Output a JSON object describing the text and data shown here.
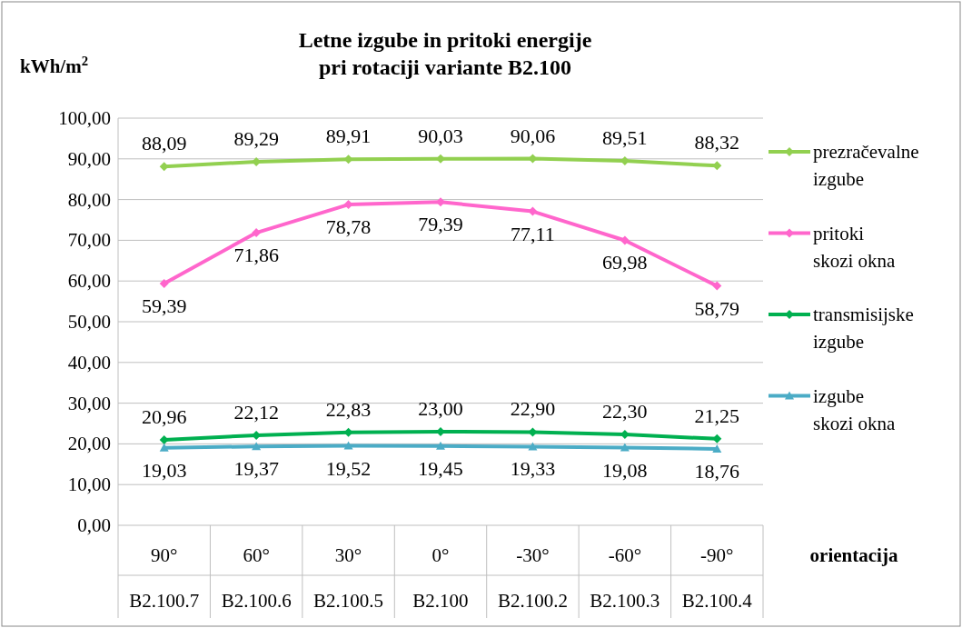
{
  "chart_data": {
    "type": "line",
    "title": "Letne izgube in pritoki energije\npri rotaciji variante B2.100",
    "ylabel": "kWh/m$^{2}$",
    "xlabel": "orientacija",
    "categories": [
      "90°\nB2.100.7",
      "60°\nB2.100.6",
      "30°\nB2.100.5",
      "0°\nB2.100",
      "-30°\nB2.100.2",
      "-60°\nB2.100.3",
      "-90°\nB2.100.4"
    ],
    "ylim": [
      0,
      100
    ],
    "yticks": [
      {
        "value": 0,
        "label": "0,00"
      },
      {
        "value": 10,
        "label": "10,00"
      },
      {
        "value": 20,
        "label": "20,00"
      },
      {
        "value": 30,
        "label": "30,00"
      },
      {
        "value": 40,
        "label": "40,00"
      },
      {
        "value": 50,
        "label": "50,00"
      },
      {
        "value": 60,
        "label": "60,00"
      },
      {
        "value": 70,
        "label": "70,00"
      },
      {
        "value": 80,
        "label": "80,00"
      },
      {
        "value": 90,
        "label": "90,00"
      },
      {
        "value": 100,
        "label": "100,00"
      }
    ],
    "grid": "y",
    "legend": "right",
    "series": [
      {
        "name": "prezračevalne izgube",
        "color": "#92d050",
        "marker": "diamond",
        "values": [
          88.09,
          89.29,
          89.91,
          90.03,
          90.06,
          89.51,
          88.32
        ],
        "value_labels": [
          "88,09",
          "89,29",
          "89,91",
          "90,03",
          "90,06",
          "89,51",
          "88,32"
        ]
      },
      {
        "name": "pritoki skozi okna",
        "color": "#ff66cc",
        "marker": "diamond",
        "values": [
          59.39,
          71.86,
          78.78,
          79.39,
          77.11,
          69.98,
          58.79
        ],
        "value_labels": [
          "59,39",
          "71,86",
          "78,78",
          "79,39",
          "77,11",
          "69,98",
          "58,79"
        ]
      },
      {
        "name": "transmisijske izgube",
        "color": "#00b050",
        "marker": "diamond",
        "values": [
          20.96,
          22.12,
          22.83,
          23.0,
          22.9,
          22.3,
          21.25
        ],
        "value_labels": [
          "20,96",
          "22,12",
          "22,83",
          "23,00",
          "22,90",
          "22,30",
          "21,25"
        ]
      },
      {
        "name": "izgube skozi okna",
        "color": "#4bacc6",
        "marker": "triangle",
        "values": [
          19.03,
          19.37,
          19.52,
          19.45,
          19.33,
          19.08,
          18.76
        ],
        "value_labels": [
          "19,03",
          "19,37",
          "19,52",
          "19,45",
          "19,33",
          "19,08",
          "18,76"
        ]
      }
    ]
  }
}
